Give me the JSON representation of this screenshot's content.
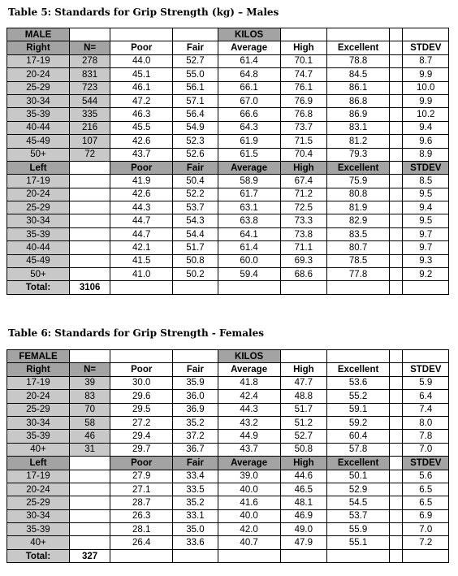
{
  "males": {
    "title": "Table 5:  Standards for Grip Strength (kg) – Males",
    "group_label": "MALE",
    "unit_label": "KILOS",
    "right_label": "Right",
    "left_label": "Left",
    "n_header": "N=",
    "columns": [
      "Poor",
      "Fair",
      "Average",
      "High",
      "Excellent",
      "STDEV"
    ],
    "right_rows": [
      {
        "age": "17-19",
        "n": "278",
        "vals": [
          "44.0",
          "52.7",
          "61.4",
          "70.1",
          "78.8",
          "8.7"
        ]
      },
      {
        "age": "20-24",
        "n": "831",
        "vals": [
          "45.1",
          "55.0",
          "64.8",
          "74.7",
          "84.5",
          "9.9"
        ]
      },
      {
        "age": "25-29",
        "n": "723",
        "vals": [
          "46.1",
          "56.1",
          "66.1",
          "76.1",
          "86.1",
          "10.0"
        ]
      },
      {
        "age": "30-34",
        "n": "544",
        "vals": [
          "47.2",
          "57.1",
          "67.0",
          "76.9",
          "86.8",
          "9.9"
        ]
      },
      {
        "age": "35-39",
        "n": "335",
        "vals": [
          "46.3",
          "56.4",
          "66.6",
          "76.8",
          "86.9",
          "10.2"
        ]
      },
      {
        "age": "40-44",
        "n": "216",
        "vals": [
          "45.5",
          "54.9",
          "64.3",
          "73.7",
          "83.1",
          "9.4"
        ]
      },
      {
        "age": "45-49",
        "n": "107",
        "vals": [
          "42.6",
          "52.3",
          "61.9",
          "71.5",
          "81.2",
          "9.6"
        ]
      },
      {
        "age": "50+",
        "n": "72",
        "vals": [
          "43.7",
          "52.6",
          "61.5",
          "70.4",
          "79.3",
          "8.9"
        ]
      }
    ],
    "left_rows": [
      {
        "age": "17-19",
        "vals": [
          "41.9",
          "50.4",
          "58.9",
          "67.4",
          "75.9",
          "8.5"
        ]
      },
      {
        "age": "20-24",
        "vals": [
          "42.6",
          "52.2",
          "61.7",
          "71.2",
          "80.8",
          "9.5"
        ]
      },
      {
        "age": "25-29",
        "vals": [
          "44.3",
          "53.7",
          "63.1",
          "72.5",
          "81.9",
          "9.4"
        ]
      },
      {
        "age": "30-34",
        "vals": [
          "44.7",
          "54.3",
          "63.8",
          "73.3",
          "82.9",
          "9.5"
        ]
      },
      {
        "age": "35-39",
        "vals": [
          "44.7",
          "54.4",
          "64.1",
          "73.8",
          "83.5",
          "9.7"
        ]
      },
      {
        "age": "40-44",
        "vals": [
          "42.1",
          "51.7",
          "61.4",
          "71.1",
          "80.7",
          "9.7"
        ]
      },
      {
        "age": "45-49",
        "vals": [
          "41.5",
          "50.8",
          "60.0",
          "69.3",
          "78.5",
          "9.3"
        ]
      },
      {
        "age": "50+",
        "vals": [
          "41.0",
          "50.2",
          "59.4",
          "68.6",
          "77.8",
          "9.2"
        ]
      }
    ],
    "total_label": "Total:",
    "total_value": "3106"
  },
  "females": {
    "title": "Table 6:  Standards for Grip Strength - Females",
    "group_label": "FEMALE",
    "unit_label": "KILOS",
    "right_label": "Right",
    "left_label": "Left",
    "n_header": "N=",
    "columns": [
      "Poor",
      "Fair",
      "Average",
      "High",
      "Excellent",
      "STDEV"
    ],
    "right_rows": [
      {
        "age": "17-19",
        "n": "39",
        "vals": [
          "30.0",
          "35.9",
          "41.8",
          "47.7",
          "53.6",
          "5.9"
        ]
      },
      {
        "age": "20-24",
        "n": "83",
        "vals": [
          "29.6",
          "36.0",
          "42.4",
          "48.8",
          "55.2",
          "6.4"
        ]
      },
      {
        "age": "25-29",
        "n": "70",
        "vals": [
          "29.5",
          "36.9",
          "44.3",
          "51.7",
          "59.1",
          "7.4"
        ]
      },
      {
        "age": "30-34",
        "n": "58",
        "vals": [
          "27.2",
          "35.2",
          "43.2",
          "51.2",
          "59.2",
          "8.0"
        ]
      },
      {
        "age": "35-39",
        "n": "46",
        "vals": [
          "29.4",
          "37.2",
          "44.9",
          "52.7",
          "60.4",
          "7.8"
        ]
      },
      {
        "age": "40+",
        "n": "31",
        "vals": [
          "29.7",
          "36.7",
          "43.7",
          "50.8",
          "57.8",
          "7.0"
        ]
      }
    ],
    "left_rows": [
      {
        "age": "17-19",
        "vals": [
          "27.9",
          "33.4",
          "39.0",
          "44.6",
          "50.1",
          "5.6"
        ]
      },
      {
        "age": "20-24",
        "vals": [
          "27.1",
          "33.5",
          "40.0",
          "46.5",
          "52.9",
          "6.5"
        ]
      },
      {
        "age": "25-29",
        "vals": [
          "28.7",
          "35.2",
          "41.6",
          "48.1",
          "54.5",
          "6.5"
        ]
      },
      {
        "age": "30-34",
        "vals": [
          "26.3",
          "33.1",
          "40.0",
          "46.9",
          "53.7",
          "6.9"
        ]
      },
      {
        "age": "35-39",
        "vals": [
          "28.1",
          "35.0",
          "42.0",
          "49.0",
          "55.9",
          "7.0"
        ]
      },
      {
        "age": "40+",
        "vals": [
          "26.4",
          "33.6",
          "40.7",
          "47.9",
          "55.1",
          "7.2"
        ]
      }
    ],
    "total_label": "Total:",
    "total_value": "327"
  }
}
